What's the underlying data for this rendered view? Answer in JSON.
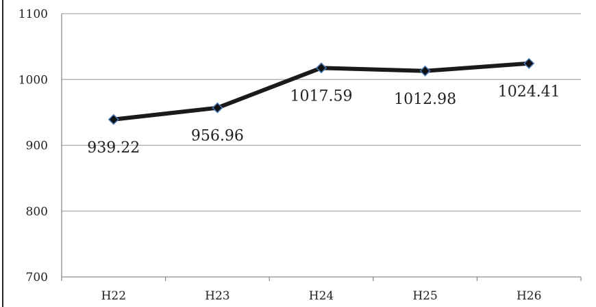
{
  "chart_data": {
    "type": "line",
    "title": "",
    "xlabel": "",
    "ylabel": "",
    "categories": [
      "H22",
      "H23",
      "H24",
      "H25",
      "H26"
    ],
    "values": [
      939.22,
      956.96,
      1017.59,
      1012.98,
      1024.41
    ],
    "data_labels": [
      "939.22",
      "956.96",
      "1017.59",
      "1012.98",
      "1024.41"
    ],
    "ylim": [
      700,
      1100
    ],
    "yticks": [
      700,
      800,
      900,
      1000,
      1100
    ],
    "ytick_labels": [
      "700",
      "800",
      "900",
      "1000",
      "1100"
    ],
    "grid": true,
    "legend": "none",
    "colors": {
      "line": "#1a1a1a",
      "marker_fill": "#111111",
      "marker_edge": "#4a78b5",
      "grid": "#a6a6a6",
      "axis": "#8c8c8c"
    }
  }
}
